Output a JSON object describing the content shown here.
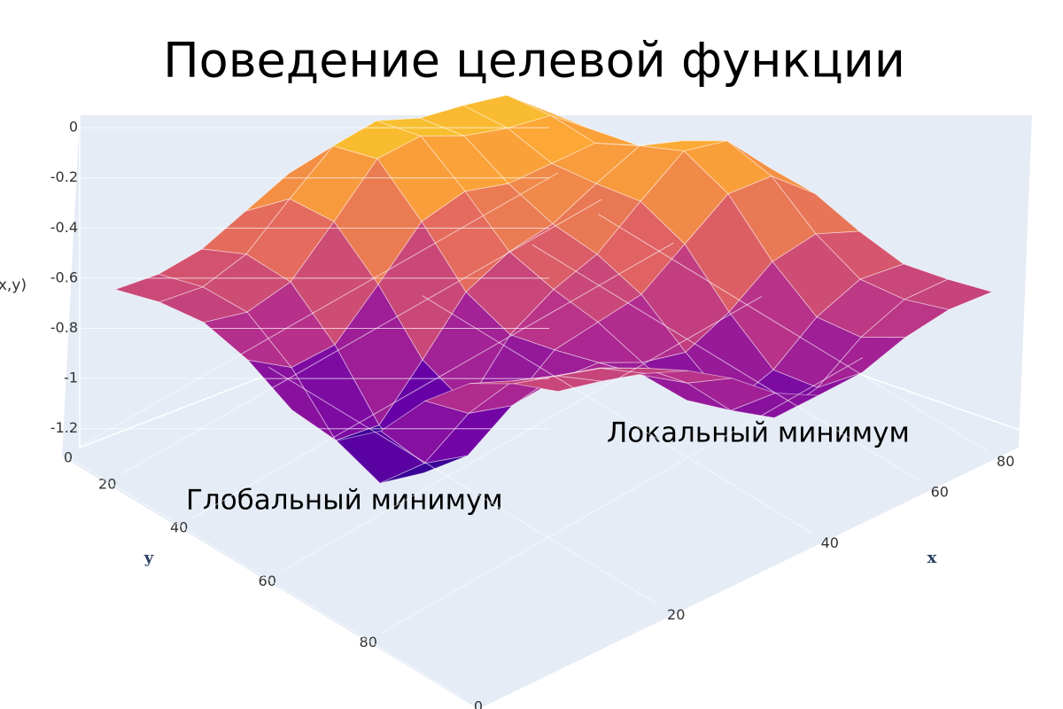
{
  "chart_data": {
    "type": "surface",
    "title": "Поведение целевой функции",
    "xlabel": "x",
    "ylabel": "y",
    "zlabel": "f(x,y)",
    "annotations": [
      "Глобальный минимум",
      "Локальный минимум"
    ],
    "x": [
      0,
      10,
      20,
      30,
      40,
      50,
      60,
      70,
      80,
      90,
      100
    ],
    "y": [
      0,
      10,
      20,
      30,
      40,
      50,
      60,
      70,
      80,
      90,
      100
    ],
    "z": [
      [
        -0.62,
        -0.6,
        -0.54,
        -0.43,
        -0.32,
        -0.28,
        -0.29,
        -0.26,
        -0.24,
        -0.33,
        -0.47
      ],
      [
        -0.63,
        -0.61,
        -0.52,
        -0.34,
        -0.17,
        -0.11,
        -0.14,
        -0.13,
        -0.13,
        -0.24,
        -0.43
      ],
      [
        -0.67,
        -0.67,
        -0.59,
        -0.39,
        -0.18,
        -0.13,
        -0.17,
        -0.18,
        -0.17,
        -0.27,
        -0.44
      ],
      [
        -0.78,
        -0.85,
        -0.8,
        -0.6,
        -0.39,
        -0.31,
        -0.32,
        -0.28,
        -0.24,
        -0.29,
        -0.43
      ],
      [
        -0.94,
        -1.1,
        -1.08,
        -0.86,
        -0.63,
        -0.51,
        -0.44,
        -0.32,
        -0.21,
        -0.23,
        -0.38
      ],
      [
        -1.02,
        -1.23,
        -1.23,
        -1,
        -0.76,
        -0.62,
        -0.52,
        -0.35,
        -0.19,
        -0.19,
        -0.34
      ],
      [
        -0.94,
        -1.11,
        -1.12,
        -0.95,
        -0.78,
        -0.71,
        -0.64,
        -0.48,
        -0.32,
        -0.29,
        -0.4
      ],
      [
        -0.78,
        -0.87,
        -0.88,
        -0.82,
        -0.79,
        -0.83,
        -0.83,
        -0.71,
        -0.55,
        -0.48,
        -0.51
      ],
      [
        -0.67,
        -0.7,
        -0.72,
        -0.73,
        -0.8,
        -0.94,
        -1,
        -0.9,
        -0.73,
        -0.62,
        -0.6
      ],
      [
        -0.63,
        -0.64,
        -0.65,
        -0.69,
        -0.79,
        -0.94,
        -1.01,
        -0.93,
        -0.77,
        -0.66,
        -0.62
      ],
      [
        -0.62,
        -0.62,
        -0.63,
        -0.66,
        -0.73,
        -0.83,
        -0.88,
        -0.83,
        -0.73,
        -0.66,
        -0.63
      ]
    ],
    "xlim": [
      0,
      100
    ],
    "ylim": [
      0,
      100
    ],
    "zlim": [
      -1.3,
      0.05
    ],
    "xticks": [
      0,
      20,
      40,
      60,
      80
    ],
    "yticks": [
      0,
      20,
      40,
      60,
      80
    ],
    "zticks": [
      0,
      -0.2,
      -0.4,
      -0.6,
      -0.8,
      -1,
      -1.2
    ],
    "colorscale": [
      "#0d0887",
      "#6a00a8",
      "#b12a90",
      "#e16462",
      "#fca636",
      "#f0f921"
    ],
    "gridcolor": "#ffffff"
  }
}
